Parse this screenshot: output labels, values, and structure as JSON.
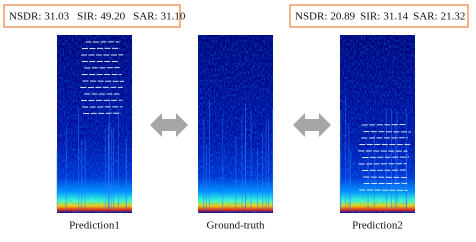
{
  "boxes": [
    {
      "metrics": [
        {
          "label": "NSDR:",
          "value": "31.03"
        },
        {
          "label": "SIR:",
          "value": "49.20"
        },
        {
          "label": "SAR:",
          "value": "31.10"
        }
      ]
    },
    {
      "metrics": [
        {
          "label": "NSDR:",
          "value": "20.89"
        },
        {
          "label": "SIR:",
          "value": "31.14"
        },
        {
          "label": "SAR:",
          "value": "21.32"
        }
      ]
    }
  ],
  "panels": [
    {
      "caption": "Prediction1"
    },
    {
      "caption": "Ground-truth"
    },
    {
      "caption": "Prediction2"
    }
  ]
}
